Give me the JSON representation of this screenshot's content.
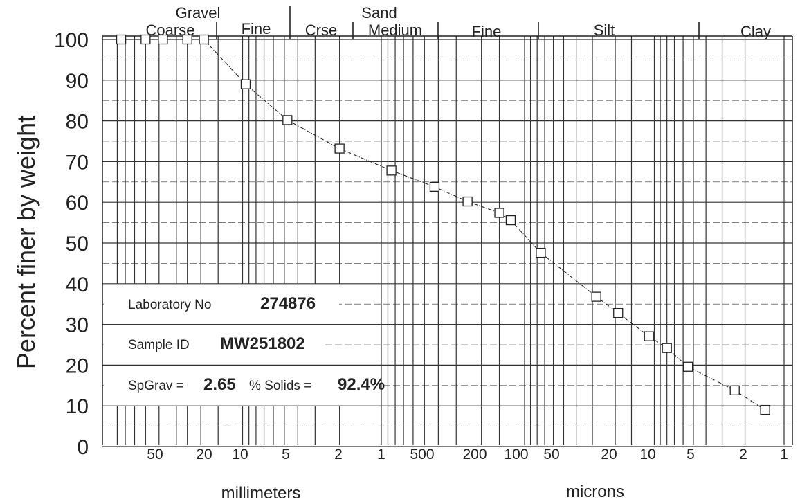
{
  "chart_data": {
    "type": "scatter",
    "title": "",
    "ylabel": "Percent finer by weight",
    "x_axis_labels": {
      "left": "millimeters",
      "right": "microns"
    },
    "y_ticks": [
      "0",
      "10",
      "20",
      "30",
      "40",
      "50",
      "60",
      "70",
      "80",
      "90",
      "100"
    ],
    "x_tick_labels_mm": [
      "50",
      "20",
      "10",
      "5",
      "2",
      "1"
    ],
    "x_tick_labels_microns": [
      "500",
      "200",
      "100",
      "50",
      "20",
      "10",
      "5",
      "2",
      "1"
    ],
    "classification": {
      "gravel_label": "Gravel",
      "gravel_coarse": "Coarse",
      "gravel_fine": "Fine",
      "sand_label": "Sand",
      "sand_coarse": "Crse",
      "sand_medium": "Medium",
      "sand_fine": "Fine",
      "silt": "Silt",
      "clay": "Clay"
    },
    "info": {
      "lab_label": "Laboratory No",
      "lab_value": "274876",
      "sample_label": "Sample ID",
      "sample_value": "MW251802",
      "spgrav_label": "SpGrav =",
      "spgrav_value": "2.65",
      "solids_label": "% Solids =",
      "solids_value": "92.4%"
    },
    "series": [
      {
        "x": [
          75,
          50,
          37.5,
          25,
          19,
          9.5,
          4.75,
          2,
          0.85,
          0.425,
          0.25,
          0.15,
          0.125,
          0.075,
          0.028,
          0.019,
          0.011,
          0.008,
          0.0055,
          0.0024,
          0.0014
        ],
        "values": [
          100,
          100,
          100,
          100,
          100,
          89,
          80.2,
          73.2,
          67.8,
          63.8,
          60.2,
          57.4,
          55.6,
          47.6,
          36.8,
          32.8,
          27.1,
          24.2,
          19.6,
          13.8,
          9
        ]
      }
    ],
    "x_scale": "log",
    "x_direction": "decreasing",
    "y_range": [
      0,
      100
    ],
    "grid": true,
    "colors": {
      "marker": "#222222",
      "line": "#222222",
      "grid": "#333333"
    }
  }
}
